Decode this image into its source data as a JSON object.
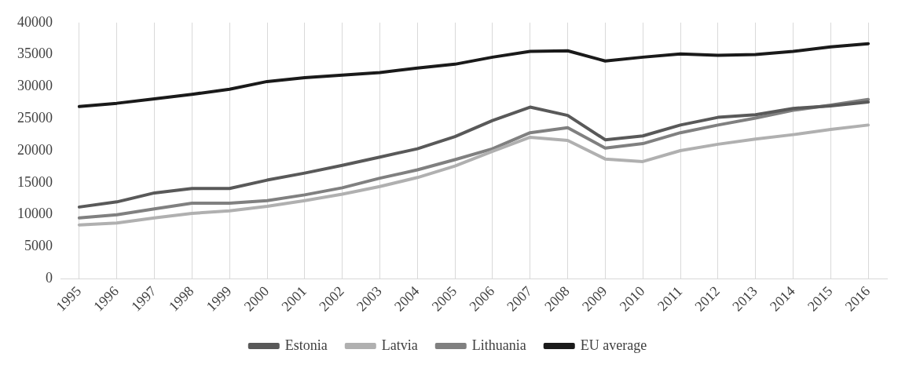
{
  "chart_data": {
    "type": "line",
    "categories": [
      "1995",
      "1996",
      "1997",
      "1998",
      "1999",
      "2000",
      "2001",
      "2002",
      "2003",
      "2004",
      "2005",
      "2006",
      "2007",
      "2008",
      "2009",
      "2010",
      "2011",
      "2012",
      "2013",
      "2014",
      "2015",
      "2016"
    ],
    "series": [
      {
        "name": "Estonia",
        "color": "#595959",
        "values": [
          11200,
          12000,
          13400,
          14100,
          14100,
          15400,
          16500,
          17700,
          19000,
          20300,
          22200,
          24700,
          26800,
          25500,
          21700,
          22300,
          24000,
          25200,
          25600,
          26600,
          27000,
          27600
        ]
      },
      {
        "name": "Latvia",
        "color": "#b0b0b0",
        "values": [
          8400,
          8700,
          9500,
          10200,
          10600,
          11300,
          12200,
          13200,
          14400,
          15800,
          17600,
          19900,
          22100,
          21600,
          18700,
          18300,
          20000,
          21000,
          21800,
          22500,
          23300,
          24000
        ]
      },
      {
        "name": "Lithuania",
        "color": "#808080",
        "values": [
          9500,
          10000,
          10900,
          11800,
          11800,
          12200,
          13100,
          14200,
          15700,
          17000,
          18600,
          20300,
          22800,
          23600,
          20400,
          21100,
          22800,
          24000,
          25100,
          26300,
          27100,
          28000
        ]
      },
      {
        "name": "EU average",
        "color": "#1a1a1a",
        "values": [
          26900,
          27400,
          28100,
          28800,
          29600,
          30800,
          31400,
          31800,
          32200,
          32900,
          33500,
          34600,
          35500,
          35600,
          34000,
          34600,
          35100,
          34900,
          35000,
          35500,
          36200,
          36700
        ]
      }
    ],
    "ylim": [
      0,
      40000
    ],
    "yticks": [
      0,
      5000,
      10000,
      15000,
      20000,
      25000,
      30000,
      35000,
      40000
    ],
    "grid": "x",
    "legend": "bottom",
    "marker": "none",
    "line_style": "solid"
  }
}
